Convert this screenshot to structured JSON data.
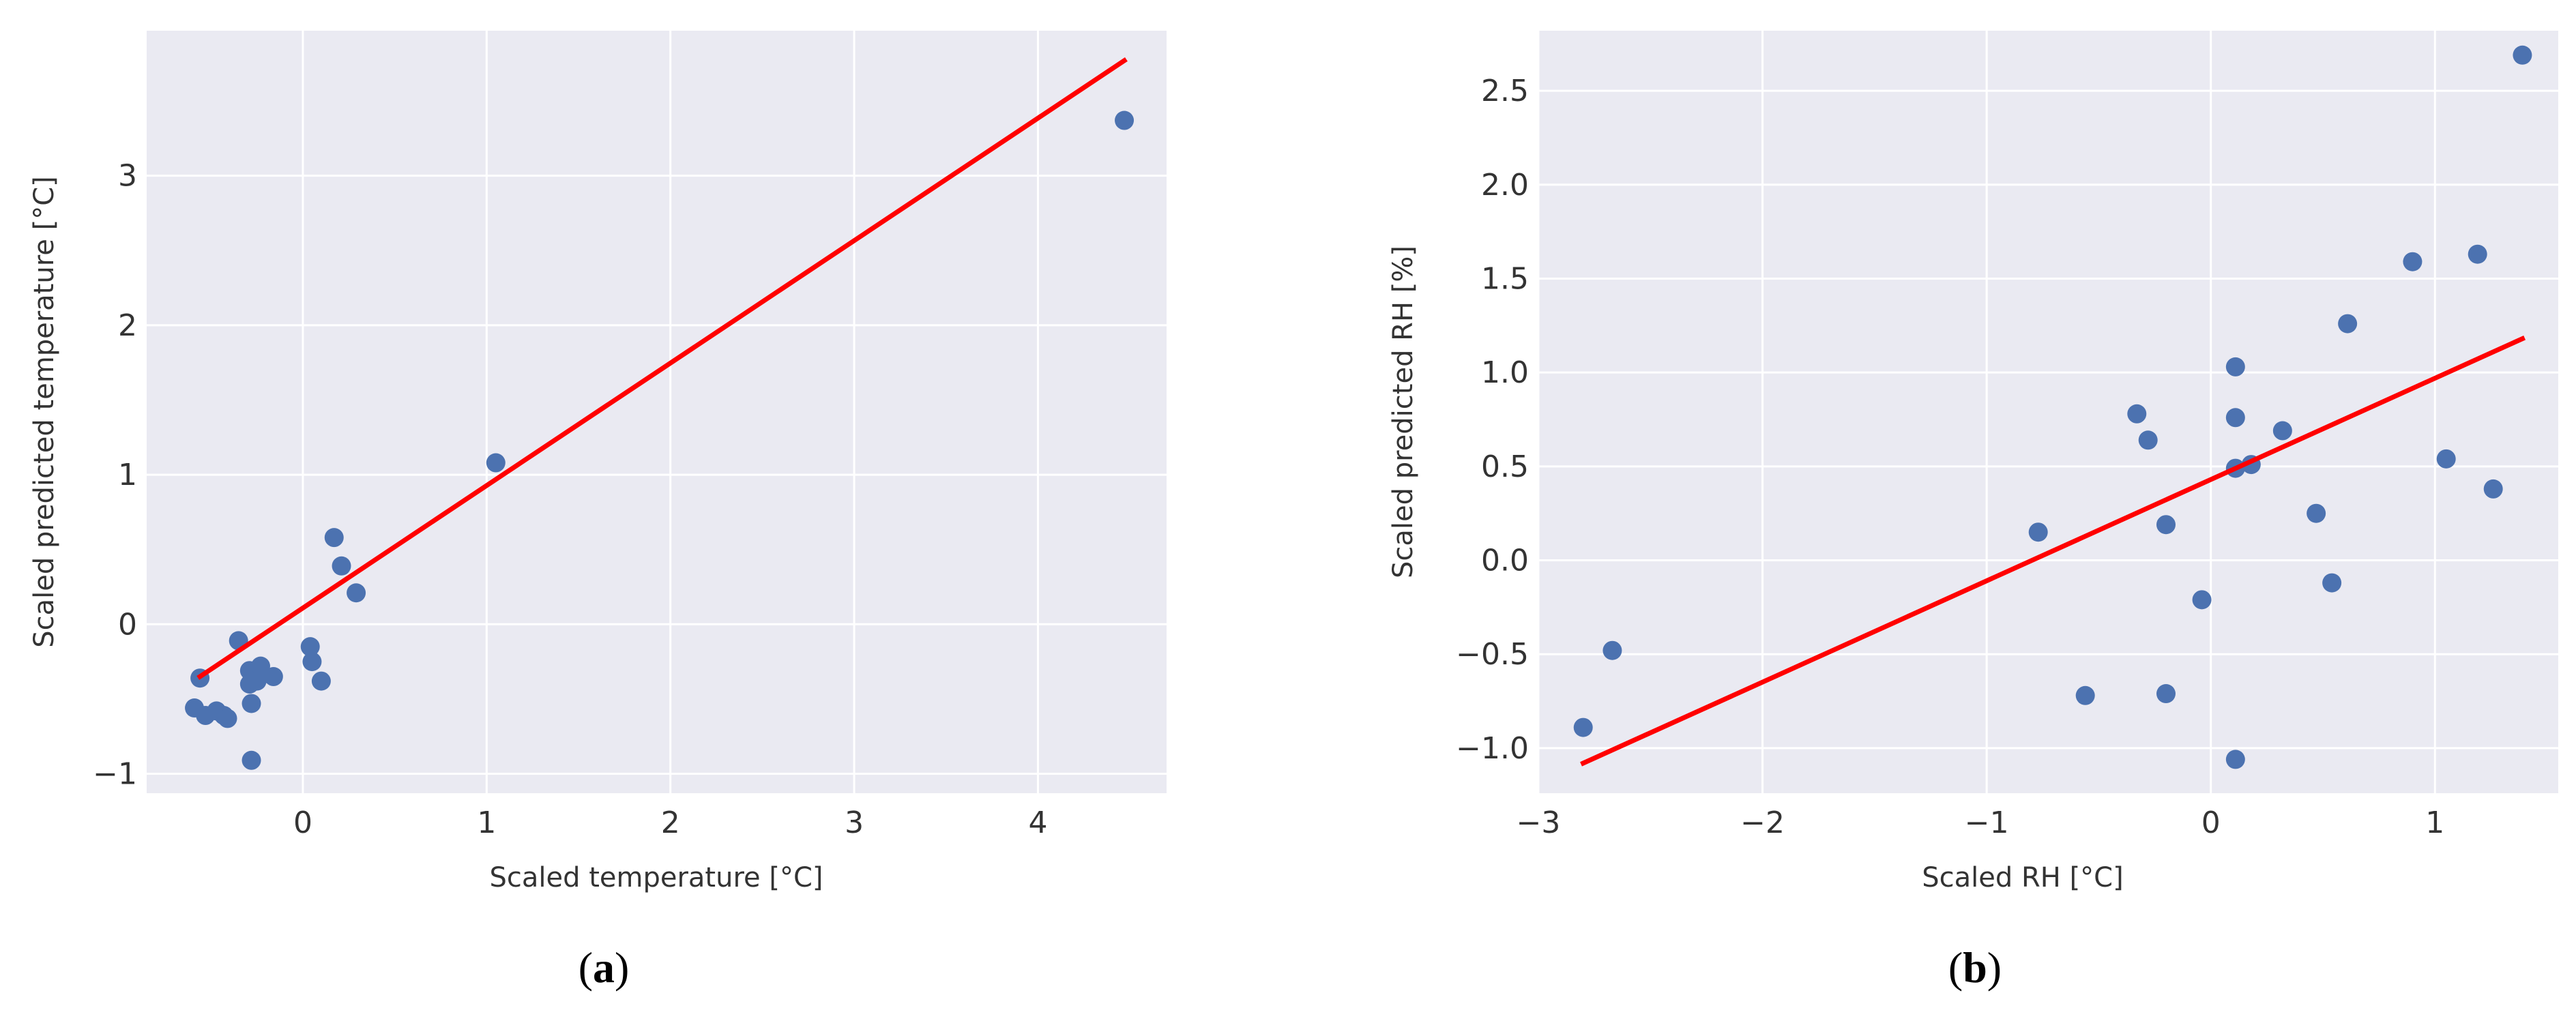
{
  "chart_data": [
    {
      "type": "scatter",
      "panel_label": "a",
      "xlabel": "Scaled temperature [°C]",
      "ylabel": "Scaled predicted temperature [°C]",
      "xlim": [
        -0.85,
        4.7
      ],
      "ylim": [
        -1.13,
        3.97
      ],
      "xticks": [
        0,
        1,
        2,
        3,
        4
      ],
      "xtick_labels": [
        "0",
        "1",
        "2",
        "3",
        "4"
      ],
      "yticks": [
        -1,
        0,
        1,
        2,
        3
      ],
      "ytick_labels": [
        "−1",
        "0",
        "1",
        "2",
        "3"
      ],
      "grid": true,
      "marker_color": "#4c72b0",
      "line_color": "#ff0000",
      "points": [
        {
          "x": -0.59,
          "y": -0.56
        },
        {
          "x": -0.56,
          "y": -0.36
        },
        {
          "x": -0.53,
          "y": -0.61
        },
        {
          "x": -0.47,
          "y": -0.58
        },
        {
          "x": -0.43,
          "y": -0.61
        },
        {
          "x": -0.41,
          "y": -0.63
        },
        {
          "x": -0.35,
          "y": -0.11
        },
        {
          "x": -0.29,
          "y": -0.31
        },
        {
          "x": -0.29,
          "y": -0.4
        },
        {
          "x": -0.28,
          "y": -0.53
        },
        {
          "x": -0.28,
          "y": -0.91
        },
        {
          "x": -0.25,
          "y": -0.38
        },
        {
          "x": -0.23,
          "y": -0.28
        },
        {
          "x": -0.16,
          "y": -0.35
        },
        {
          "x": 0.04,
          "y": -0.15
        },
        {
          "x": 0.05,
          "y": -0.25
        },
        {
          "x": 0.1,
          "y": -0.38
        },
        {
          "x": 0.17,
          "y": 0.58
        },
        {
          "x": 0.21,
          "y": 0.39
        },
        {
          "x": 0.29,
          "y": 0.21
        },
        {
          "x": 1.05,
          "y": 1.08
        },
        {
          "x": 4.47,
          "y": 3.37
        }
      ],
      "fit_line": {
        "x": [
          -0.56,
          4.47
        ],
        "y": [
          -0.35,
          3.77
        ]
      }
    },
    {
      "type": "scatter",
      "panel_label": "b",
      "xlabel": "Scaled RH [°C]",
      "ylabel": "Scaled predicted RH [%]",
      "xlim": [
        -3.0,
        1.55
      ],
      "ylim": [
        -1.24,
        2.82
      ],
      "xticks": [
        -3,
        -2,
        -1,
        0,
        1
      ],
      "xtick_labels": [
        "−3",
        "−2",
        "−1",
        "0",
        "1"
      ],
      "yticks": [
        -1.0,
        -0.5,
        0.0,
        0.5,
        1.0,
        1.5,
        2.0,
        2.5
      ],
      "ytick_labels": [
        "−1.0",
        "−0.5",
        "0.0",
        "0.5",
        "1.0",
        "1.5",
        "2.0",
        "2.5"
      ],
      "grid": true,
      "marker_color": "#4c72b0",
      "line_color": "#ff0000",
      "points": [
        {
          "x": -2.8,
          "y": -0.89
        },
        {
          "x": -2.67,
          "y": -0.48
        },
        {
          "x": -0.77,
          "y": 0.15
        },
        {
          "x": -0.56,
          "y": -0.72
        },
        {
          "x": -0.33,
          "y": 0.78
        },
        {
          "x": -0.28,
          "y": 0.64
        },
        {
          "x": -0.2,
          "y": 0.19
        },
        {
          "x": -0.2,
          "y": -0.71
        },
        {
          "x": -0.04,
          "y": -0.21
        },
        {
          "x": 0.11,
          "y": 1.03
        },
        {
          "x": 0.11,
          "y": 0.76
        },
        {
          "x": 0.11,
          "y": 0.49
        },
        {
          "x": 0.11,
          "y": -1.06
        },
        {
          "x": 0.18,
          "y": 0.51
        },
        {
          "x": 0.32,
          "y": 0.69
        },
        {
          "x": 0.47,
          "y": 0.25
        },
        {
          "x": 0.54,
          "y": -0.12
        },
        {
          "x": 0.61,
          "y": 1.26
        },
        {
          "x": 0.9,
          "y": 1.59
        },
        {
          "x": 1.05,
          "y": 0.54
        },
        {
          "x": 1.19,
          "y": 1.63
        },
        {
          "x": 1.26,
          "y": 0.38
        },
        {
          "x": 1.39,
          "y": 2.69
        }
      ],
      "fit_line": {
        "x": [
          -2.8,
          1.39
        ],
        "y": [
          -1.08,
          1.18
        ]
      }
    }
  ]
}
